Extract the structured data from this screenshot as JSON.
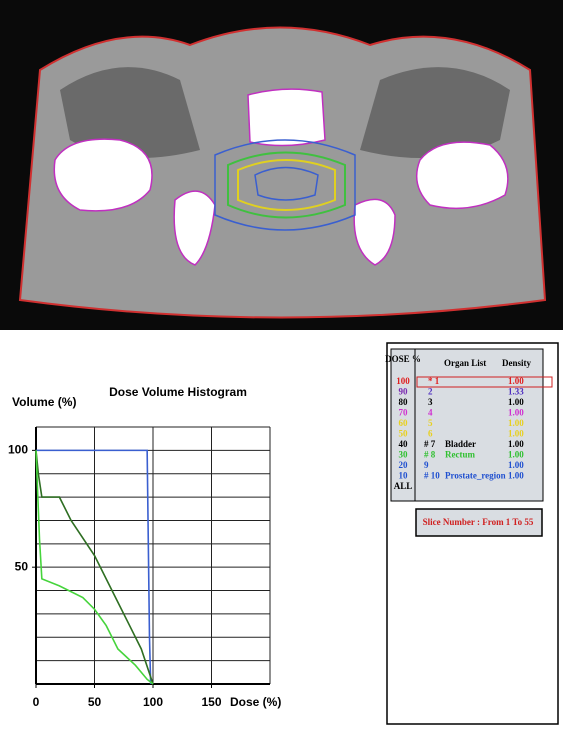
{
  "chart_data": {
    "type": "line",
    "title": "Dose Volume Histogram",
    "y_label": "Volume (%)",
    "x_label": "Dose (%)",
    "xlim": [
      0,
      200
    ],
    "xticks": [
      0,
      50,
      100,
      150
    ],
    "x_grid": [
      0,
      50,
      100,
      150,
      200
    ],
    "ylim": [
      0,
      110
    ],
    "yticks": [
      50,
      100
    ],
    "y_grid": [
      0,
      10,
      20,
      30,
      40,
      50,
      60,
      70,
      80,
      90,
      100,
      110
    ],
    "grid": true,
    "series": [
      {
        "color": "#3a5fd0",
        "x": [
          0,
          95,
          96,
          97,
          98
        ],
        "values": [
          100,
          100,
          60,
          20,
          0
        ]
      },
      {
        "color": "#2e6e22",
        "x": [
          0,
          2,
          5,
          20,
          30,
          50,
          70,
          90,
          100
        ],
        "values": [
          100,
          90,
          80,
          80,
          70,
          55,
          35,
          15,
          0
        ]
      },
      {
        "color": "#46d43c",
        "x": [
          0,
          3,
          5,
          20,
          40,
          50,
          60,
          70,
          85,
          95,
          100
        ],
        "values": [
          100,
          62,
          45,
          42,
          37,
          32,
          25,
          15,
          8,
          2,
          0
        ]
      }
    ]
  },
  "dose_legend": {
    "title": "DOSE %",
    "levels": [
      {
        "label": "100",
        "color": "#e02020"
      },
      {
        "label": "90",
        "color": "#7a2ab0"
      },
      {
        "label": "80",
        "color": "#000000"
      },
      {
        "label": "70",
        "color": "#d030d0"
      },
      {
        "label": "60",
        "color": "#e8d020"
      },
      {
        "label": "50",
        "color": "#e8d020"
      },
      {
        "label": "40",
        "color": "#000000"
      },
      {
        "label": "30",
        "color": "#30c030"
      },
      {
        "label": "20",
        "color": "#2050d0"
      },
      {
        "label": "10",
        "color": "#2050d0"
      },
      {
        "label": "ALL",
        "color": "#000000"
      }
    ]
  },
  "organ_table": {
    "headers": [
      "Organ List",
      "Density"
    ],
    "rows": [
      {
        "id": "* 1",
        "density": "1.00",
        "color": "#e02020"
      },
      {
        "id": "2",
        "density": "1.33",
        "color": "#5030c0"
      },
      {
        "id": "3",
        "density": "1.00",
        "color": "#000000"
      },
      {
        "id": "4",
        "density": "1.00",
        "color": "#d030d0"
      },
      {
        "id": "5",
        "density": "1.00",
        "color": "#e8d020"
      },
      {
        "id": "6",
        "density": "1.00",
        "color": "#e8d020"
      },
      {
        "id": "# 7",
        "name": "Bladder",
        "density": "1.00",
        "color": "#000000"
      },
      {
        "id": "# 8",
        "name": "Rectum",
        "density": "1.00",
        "color": "#30c030"
      },
      {
        "id": "9",
        "density": "1.00",
        "color": "#2050d0"
      },
      {
        "id": "# 10",
        "name": "Prostate_region",
        "density": "1.00",
        "color": "#2050d0"
      }
    ]
  },
  "slice_info": "Slice Number :  From 1  To 55"
}
